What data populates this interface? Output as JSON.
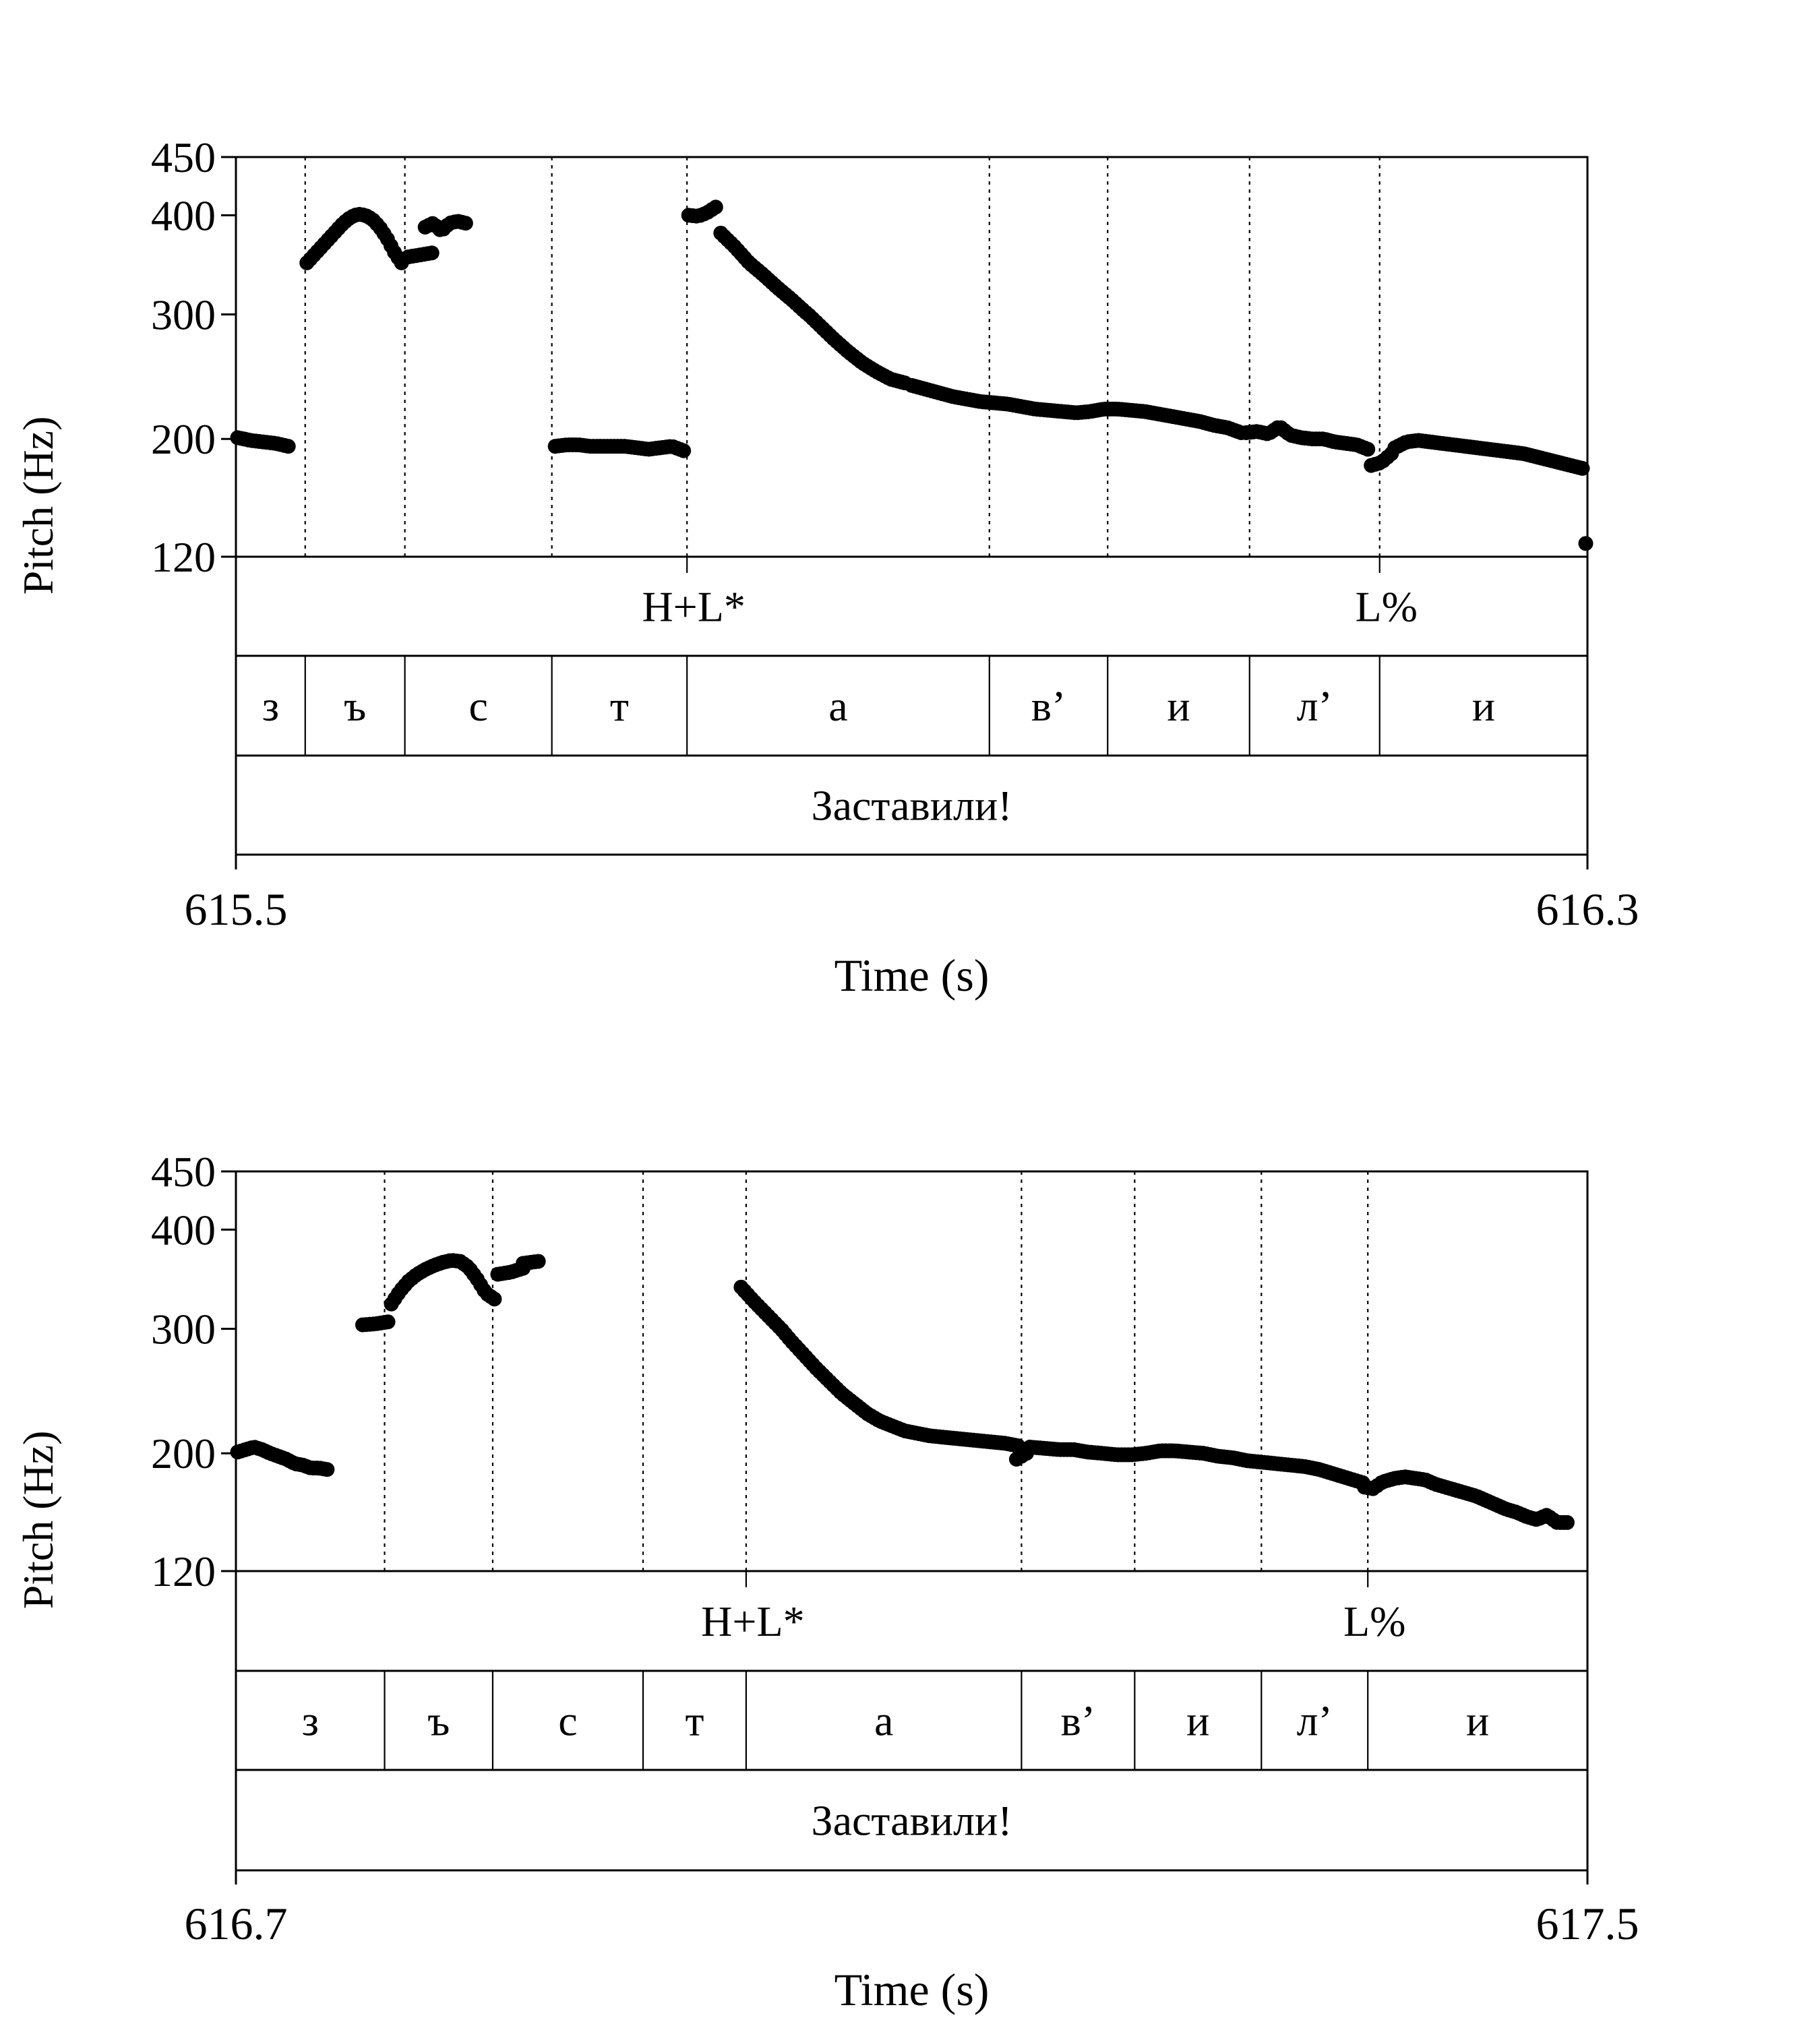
{
  "chart_data": [
    {
      "type": "scatter",
      "xlabel": "Time (s)",
      "ylabel": "Pitch (Hz)",
      "xlim": [
        615.5,
        616.3
      ],
      "x_ticks": [
        "615.5",
        "616.3"
      ],
      "ylim": [
        120,
        450
      ],
      "y_ticks": [
        120,
        200,
        300,
        400,
        450
      ],
      "y_tick_labels": [
        "120",
        "200",
        "300",
        "400",
        "450"
      ],
      "tones": [
        {
          "label": "H+L*",
          "t": 615.767
        },
        {
          "label": "L%",
          "t": 616.177
        }
      ],
      "segments": [
        {
          "label": "з",
          "start": 615.5,
          "end": 615.541
        },
        {
          "label": "ъ",
          "start": 615.541,
          "end": 615.6
        },
        {
          "label": "с",
          "start": 615.6,
          "end": 615.687
        },
        {
          "label": "т",
          "start": 615.687,
          "end": 615.767
        },
        {
          "label": "а",
          "start": 615.767,
          "end": 615.946
        },
        {
          "label": "в’",
          "start": 615.946,
          "end": 616.016
        },
        {
          "label": "и",
          "start": 616.016,
          "end": 616.1
        },
        {
          "label": "л’",
          "start": 616.1,
          "end": 616.177
        },
        {
          "label": "и",
          "start": 616.177,
          "end": 616.3
        }
      ],
      "word": "Заставили!",
      "pitch_runs": [
        {
          "t_start": 615.501,
          "t_end": 615.531,
          "points": [
            201,
            199,
            198,
            197,
            195
          ]
        },
        {
          "t_start": 615.542,
          "t_end": 615.598,
          "points": [
            352,
            360,
            368,
            376,
            384,
            392,
            398,
            401,
            400,
            396,
            388,
            377,
            363,
            352
          ]
        },
        {
          "t_start": 615.602,
          "t_end": 615.616,
          "points": [
            358,
            362
          ]
        },
        {
          "t_start": 615.612,
          "t_end": 615.636,
          "points": [
            388,
            392,
            384,
            392,
            394,
            392
          ]
        },
        {
          "t_start": 615.689,
          "t_end": 615.765,
          "points": [
            195,
            196,
            196,
            195,
            195,
            195,
            195,
            194,
            193,
            194,
            195,
            192
          ]
        },
        {
          "t_start": 615.768,
          "t_end": 615.784,
          "points": [
            400,
            399,
            402,
            407
          ]
        },
        {
          "t_start": 615.787,
          "t_end": 615.896,
          "points": [
            382,
            368,
            352,
            340,
            327,
            315,
            302,
            291,
            280,
            270,
            261,
            254,
            248,
            245
          ]
        },
        {
          "t_start": 615.9,
          "t_end": 616.095,
          "points": [
            243,
            240,
            237,
            234,
            232,
            230,
            229,
            228,
            226,
            224,
            223,
            222,
            221,
            222,
            224,
            224,
            223,
            222,
            220,
            218,
            216,
            214,
            211,
            209,
            205
          ]
        },
        {
          "t_start": 616.098,
          "t_end": 616.17,
          "points": [
            205,
            206,
            204,
            210,
            203,
            201,
            200,
            200,
            198,
            197,
            196,
            193
          ]
        },
        {
          "t_start": 616.172,
          "t_end": 616.184,
          "points": [
            182,
            184,
            190
          ]
        },
        {
          "t_start": 616.186,
          "t_end": 616.297,
          "points": [
            194,
            198,
            199,
            198,
            197,
            196,
            195,
            194,
            193,
            192,
            191,
            190,
            188,
            186,
            184,
            182,
            180
          ]
        },
        {
          "t_start": 616.299,
          "t_end": 616.299,
          "points": [
            129
          ]
        }
      ]
    },
    {
      "type": "scatter",
      "xlabel": "Time (s)",
      "ylabel": "Pitch (Hz)",
      "xlim": [
        616.7,
        617.5
      ],
      "x_ticks": [
        "616.7",
        "617.5"
      ],
      "ylim": [
        120,
        450
      ],
      "y_ticks": [
        120,
        200,
        300,
        400,
        450
      ],
      "y_tick_labels": [
        "120",
        "200",
        "300",
        "400",
        "450"
      ],
      "tones": [
        {
          "label": "H+L*",
          "t": 617.002
        },
        {
          "label": "L%",
          "t": 617.37
        }
      ],
      "segments": [
        {
          "label": "з",
          "start": 616.7,
          "end": 616.788
        },
        {
          "label": "ъ",
          "start": 616.788,
          "end": 616.852
        },
        {
          "label": "с",
          "start": 616.852,
          "end": 616.941
        },
        {
          "label": "т",
          "start": 616.941,
          "end": 617.002
        },
        {
          "label": "а",
          "start": 617.002,
          "end": 617.165
        },
        {
          "label": "в’",
          "start": 617.165,
          "end": 617.232
        },
        {
          "label": "и",
          "start": 617.232,
          "end": 617.307
        },
        {
          "label": "л’",
          "start": 617.307,
          "end": 617.37
        },
        {
          "label": "и",
          "start": 617.37,
          "end": 617.5
        }
      ],
      "word": "Заставили!",
      "pitch_runs": [
        {
          "t_start": 616.701,
          "t_end": 616.754,
          "points": [
            201,
            203,
            205,
            203,
            200,
            198,
            196,
            193,
            192,
            190,
            190,
            189
          ]
        },
        {
          "t_start": 616.775,
          "t_end": 616.79,
          "points": [
            304,
            305,
            307
          ]
        },
        {
          "t_start": 616.792,
          "t_end": 616.853,
          "points": [
            325,
            338,
            348,
            355,
            360,
            364,
            367,
            369,
            368,
            362,
            350,
            336,
            330
          ]
        },
        {
          "t_start": 616.855,
          "t_end": 616.87,
          "points": [
            355,
            357,
            361
          ]
        },
        {
          "t_start": 616.87,
          "t_end": 616.879,
          "points": [
            366,
            368
          ]
        },
        {
          "t_start": 616.999,
          "t_end": 617.163,
          "points": [
            342,
            328,
            315,
            302,
            290,
            279,
            268,
            258,
            248,
            240,
            232,
            226,
            222,
            218,
            216,
            214,
            213,
            212,
            211,
            210,
            209,
            208,
            206
          ]
        },
        {
          "t_start": 617.162,
          "t_end": 617.168,
          "points": [
            196,
            200
          ]
        },
        {
          "t_start": 617.17,
          "t_end": 617.367,
          "points": [
            205,
            204,
            203,
            203,
            201,
            200,
            199,
            199,
            200,
            202,
            202,
            201,
            200,
            198,
            197,
            195,
            194,
            193,
            192,
            191,
            189,
            186,
            183,
            180
          ]
        },
        {
          "t_start": 617.368,
          "t_end": 617.378,
          "points": [
            177,
            176,
            180
          ]
        },
        {
          "t_start": 617.38,
          "t_end": 617.488,
          "points": [
            181,
            183,
            184,
            183,
            182,
            179,
            177,
            175,
            173,
            171,
            168,
            165,
            162,
            160,
            157,
            155,
            158,
            153,
            153
          ]
        }
      ]
    }
  ]
}
